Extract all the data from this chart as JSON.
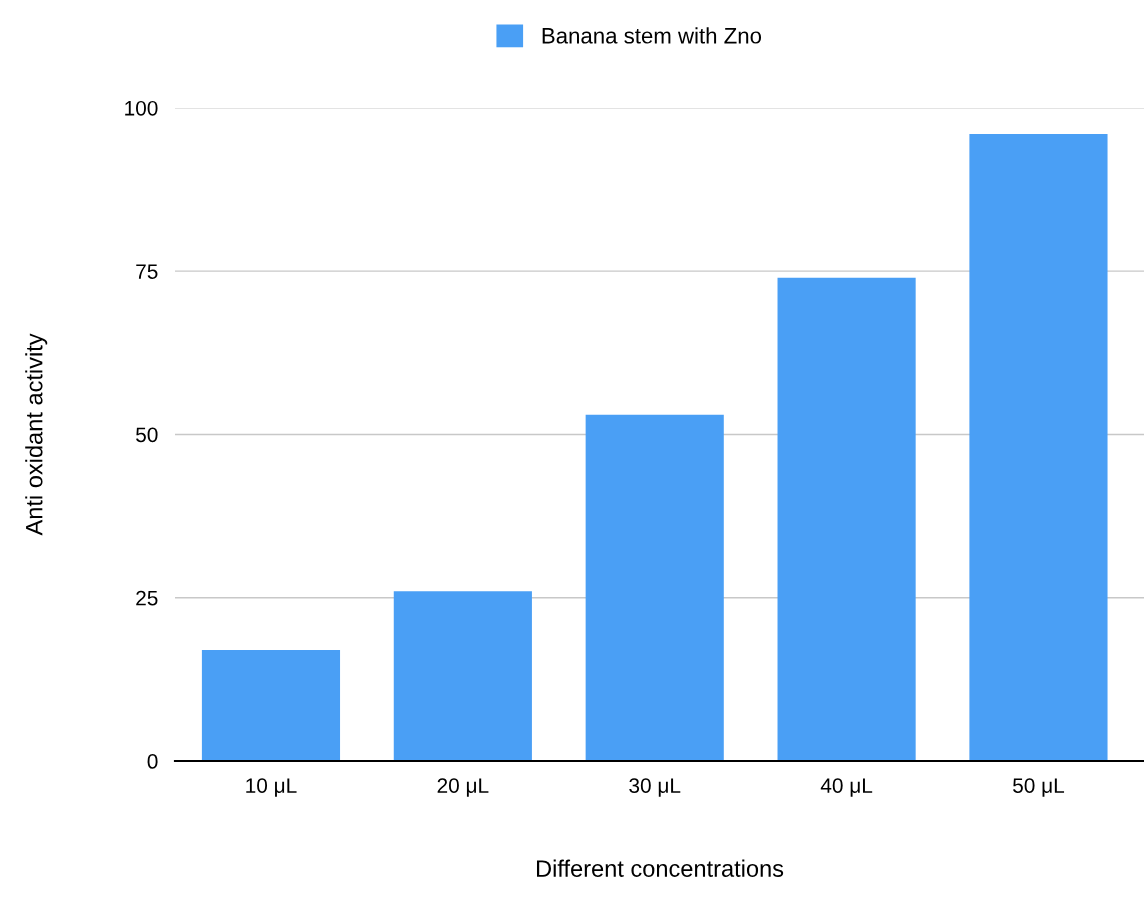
{
  "chart_data": {
    "type": "bar",
    "xlabel": "Different concentrations",
    "ylabel": "Anti oxidant activity",
    "categories": [
      "10 μL",
      "20 μL",
      "30 μL",
      "40 μL",
      "50 μL"
    ],
    "series": [
      {
        "name": "Banana stem with Zno",
        "color": "#4a9ff5",
        "values": [
          17,
          26,
          53,
          74,
          96
        ]
      }
    ],
    "ylim": [
      0,
      100
    ],
    "yticks": [
      0,
      25,
      50,
      75,
      100
    ],
    "grid": "y",
    "legend": "top"
  }
}
